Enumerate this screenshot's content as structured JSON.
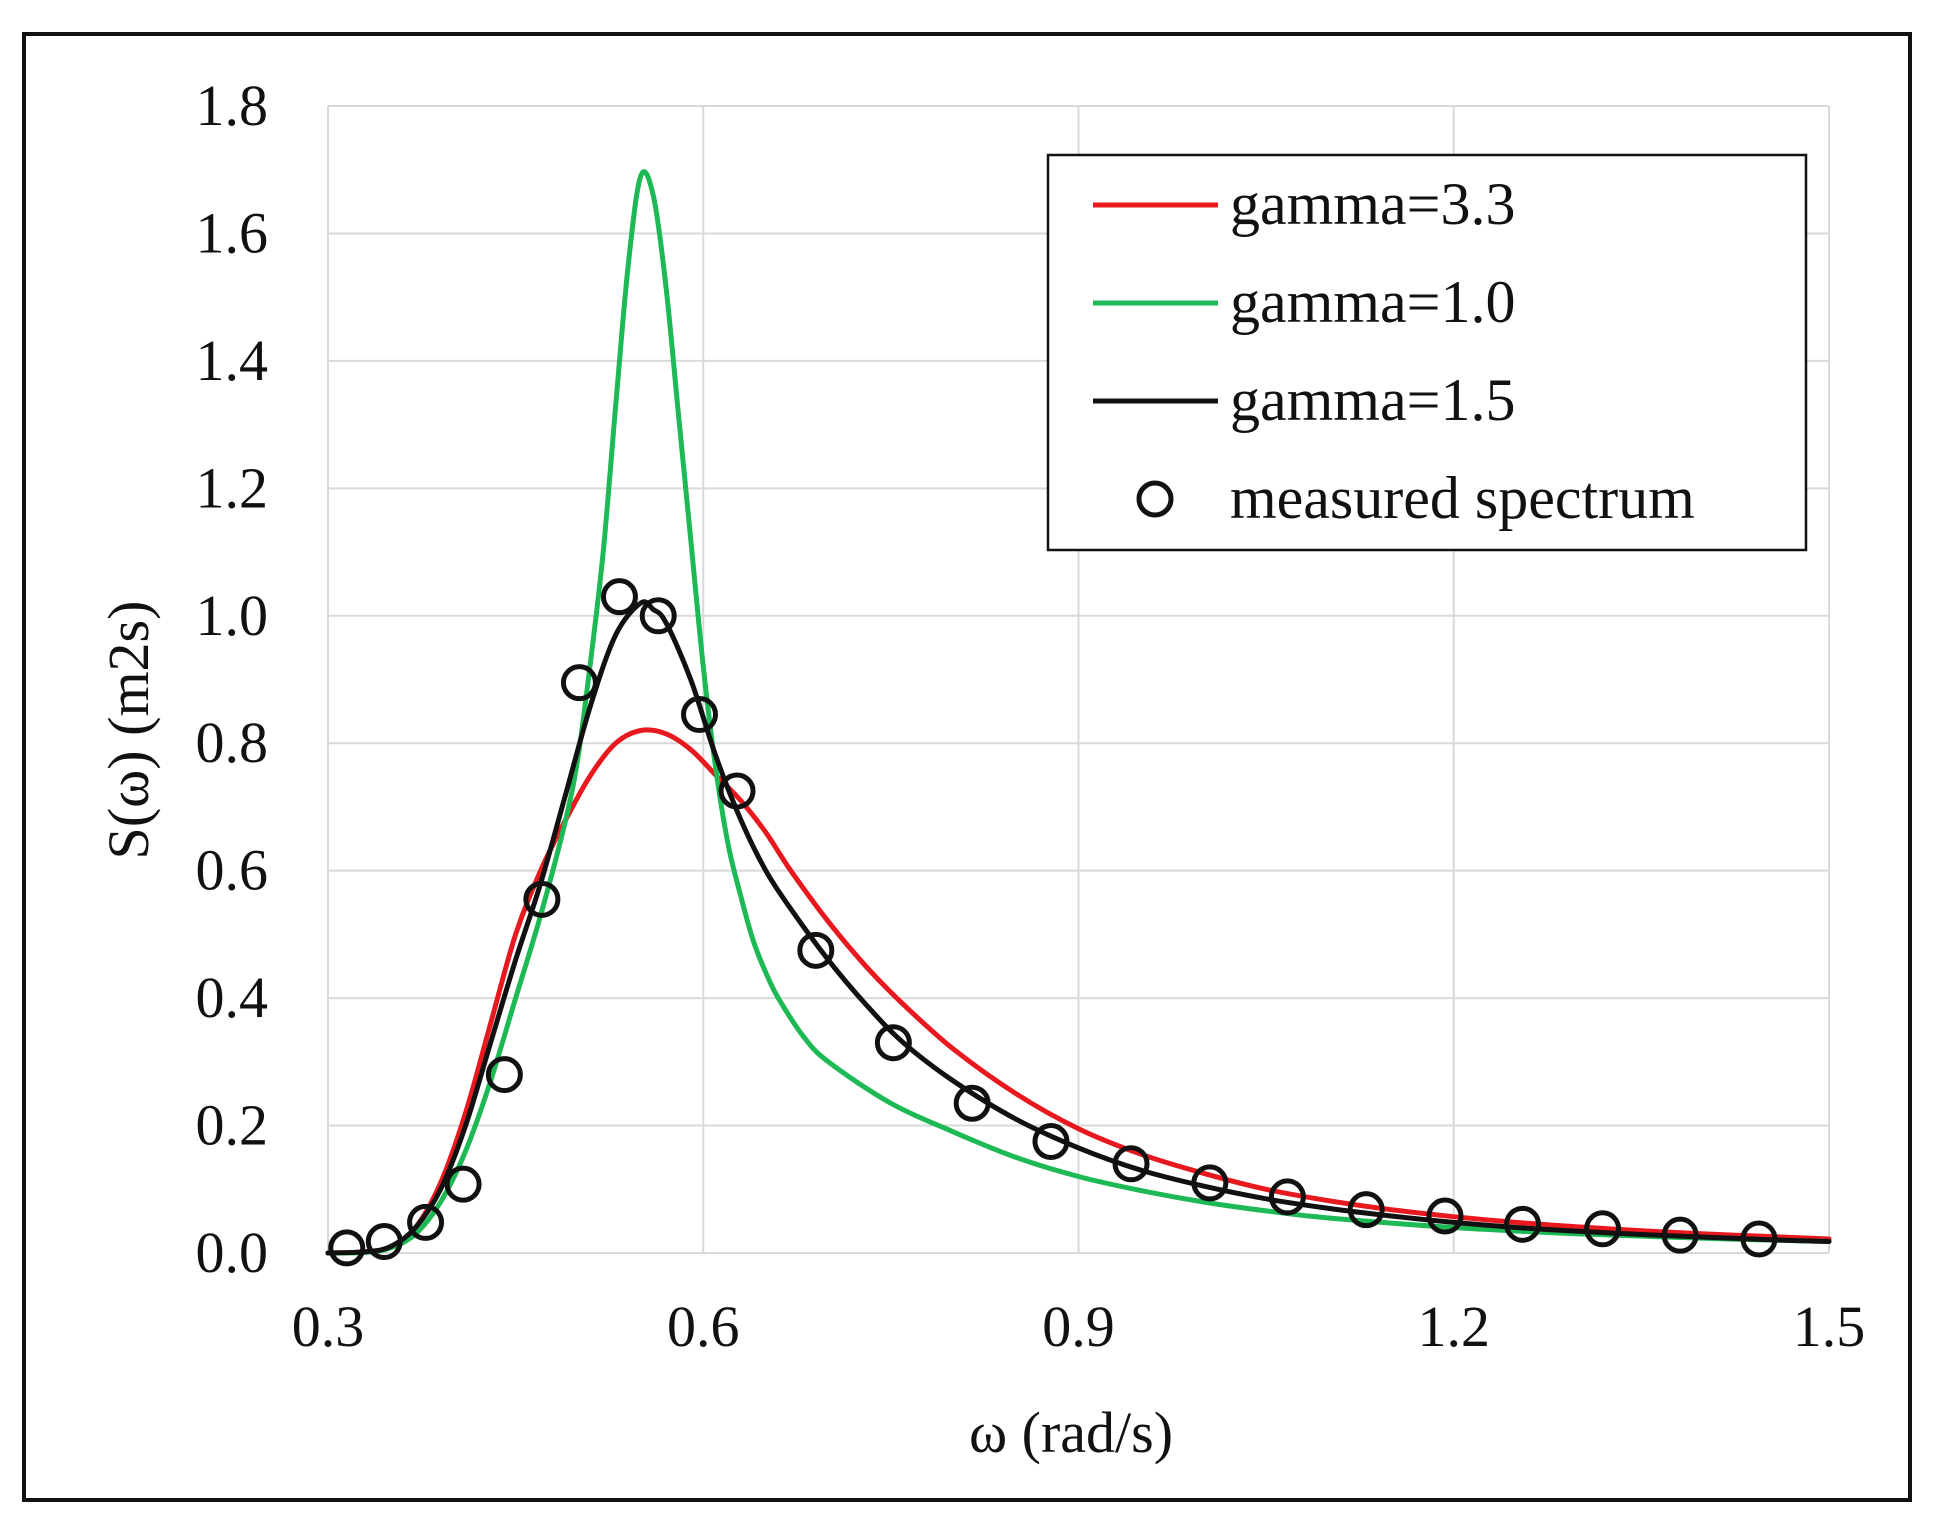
{
  "chart_data": {
    "type": "line",
    "title": "",
    "xlabel": "ω (rad/s)",
    "ylabel": "S(ω)  (m2s)",
    "xlim": [
      0.3,
      1.5
    ],
    "ylim": [
      0.0,
      1.8
    ],
    "xticks": [
      0.3,
      0.6,
      0.9,
      1.2,
      1.5
    ],
    "xtick_labels": [
      "0.3",
      "0.6",
      "0.9",
      "1.2",
      "1.5"
    ],
    "yticks": [
      0.0,
      0.2,
      0.4,
      0.6,
      0.8,
      1.0,
      1.2,
      1.4,
      1.6,
      1.8
    ],
    "ytick_labels": [
      "0.0",
      "0.2",
      "0.4",
      "0.6",
      "0.8",
      "1.0",
      "1.2",
      "1.4",
      "1.6",
      "1.8"
    ],
    "grid": true,
    "legend_position": "top-right",
    "series": [
      {
        "name": "gamma=3.3",
        "color": "#e8191e",
        "style": "line",
        "x": [
          0.3,
          0.33,
          0.35,
          0.37,
          0.39,
          0.41,
          0.43,
          0.45,
          0.47,
          0.49,
          0.51,
          0.53,
          0.55,
          0.57,
          0.59,
          0.61,
          0.63,
          0.65,
          0.67,
          0.7,
          0.73,
          0.76,
          0.8,
          0.85,
          0.9,
          0.95,
          1.0,
          1.05,
          1.1,
          1.15,
          1.2,
          1.25,
          1.3,
          1.35,
          1.4,
          1.45,
          1.5
        ],
        "y": [
          0.0,
          0.002,
          0.01,
          0.04,
          0.11,
          0.22,
          0.36,
          0.5,
          0.6,
          0.68,
          0.75,
          0.8,
          0.82,
          0.815,
          0.79,
          0.75,
          0.71,
          0.66,
          0.6,
          0.52,
          0.45,
          0.39,
          0.32,
          0.25,
          0.195,
          0.155,
          0.125,
          0.1,
          0.082,
          0.068,
          0.057,
          0.048,
          0.041,
          0.035,
          0.03,
          0.026,
          0.022
        ]
      },
      {
        "name": "gamma=1.0",
        "color": "#1db954",
        "style": "line",
        "x": [
          0.3,
          0.33,
          0.35,
          0.37,
          0.39,
          0.41,
          0.43,
          0.45,
          0.47,
          0.49,
          0.5,
          0.51,
          0.52,
          0.53,
          0.54,
          0.55,
          0.56,
          0.57,
          0.58,
          0.59,
          0.6,
          0.61,
          0.62,
          0.63,
          0.64,
          0.65,
          0.66,
          0.68,
          0.7,
          0.75,
          0.8,
          0.85,
          0.9,
          0.95,
          1.0,
          1.05,
          1.1,
          1.2,
          1.3,
          1.4,
          1.5
        ],
        "y": [
          0.0,
          0.001,
          0.008,
          0.03,
          0.08,
          0.16,
          0.27,
          0.4,
          0.53,
          0.68,
          0.78,
          0.93,
          1.1,
          1.33,
          1.55,
          1.69,
          1.66,
          1.52,
          1.32,
          1.12,
          0.92,
          0.76,
          0.64,
          0.56,
          0.49,
          0.44,
          0.4,
          0.34,
          0.3,
          0.235,
          0.19,
          0.15,
          0.12,
          0.098,
          0.08,
          0.066,
          0.055,
          0.04,
          0.03,
          0.023,
          0.018
        ]
      },
      {
        "name": "gamma=1.5",
        "color": "#111111",
        "style": "line",
        "x": [
          0.3,
          0.33,
          0.35,
          0.37,
          0.39,
          0.41,
          0.43,
          0.45,
          0.47,
          0.49,
          0.51,
          0.53,
          0.55,
          0.56,
          0.57,
          0.59,
          0.61,
          0.63,
          0.65,
          0.67,
          0.7,
          0.73,
          0.76,
          0.8,
          0.85,
          0.9,
          0.95,
          1.0,
          1.05,
          1.1,
          1.15,
          1.2,
          1.25,
          1.3,
          1.35,
          1.4,
          1.45,
          1.5
        ],
        "y": [
          0.0,
          0.002,
          0.01,
          0.04,
          0.1,
          0.2,
          0.33,
          0.46,
          0.58,
          0.72,
          0.86,
          0.97,
          1.02,
          1.01,
          0.99,
          0.9,
          0.78,
          0.68,
          0.6,
          0.54,
          0.46,
          0.39,
          0.33,
          0.27,
          0.21,
          0.165,
          0.13,
          0.105,
          0.085,
          0.07,
          0.058,
          0.048,
          0.04,
          0.034,
          0.029,
          0.025,
          0.021,
          0.018
        ]
      },
      {
        "name": "measured spectrum",
        "color": "#111111",
        "style": "markers",
        "marker": "open-circle",
        "x": [
          0.315,
          0.345,
          0.378,
          0.408,
          0.441,
          0.471,
          0.501,
          0.533,
          0.564,
          0.597,
          0.627,
          0.69,
          0.752,
          0.815,
          0.878,
          0.942,
          1.005,
          1.067,
          1.13,
          1.193,
          1.255,
          1.319,
          1.381,
          1.444
        ],
        "y": [
          0.008,
          0.018,
          0.048,
          0.108,
          0.28,
          0.555,
          0.895,
          1.03,
          1.0,
          0.845,
          0.725,
          0.475,
          0.33,
          0.235,
          0.175,
          0.14,
          0.11,
          0.088,
          0.068,
          0.058,
          0.045,
          0.038,
          0.028,
          0.022
        ]
      }
    ]
  }
}
